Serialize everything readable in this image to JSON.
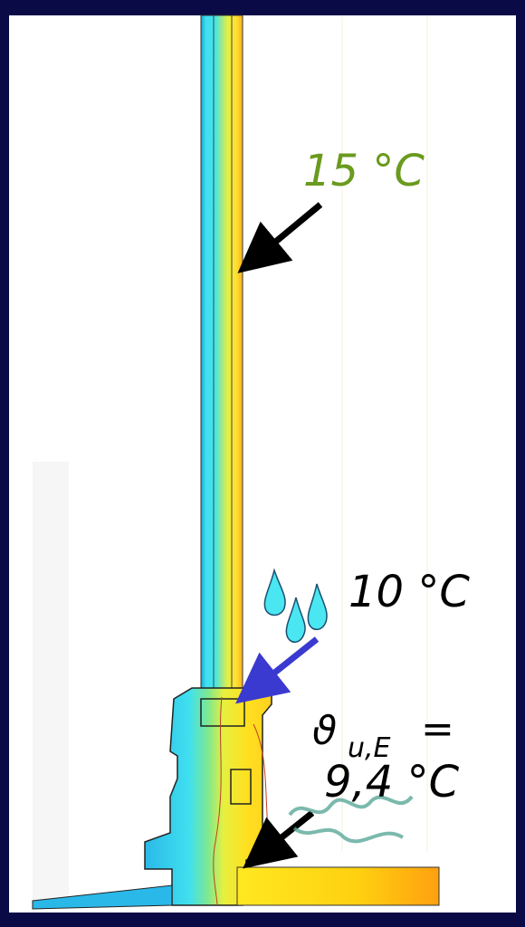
{
  "annotations": {
    "top": "15 °C",
    "middle": "10 °C"
  },
  "formula": {
    "symbol": "ϑ",
    "subscript": "u,E",
    "equals": "=",
    "value": "9,4 °C"
  }
}
